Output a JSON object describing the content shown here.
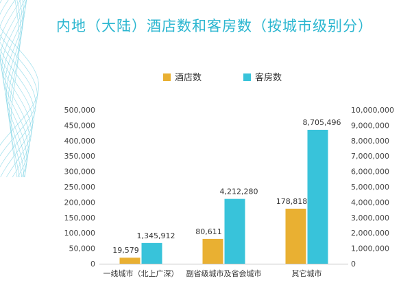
{
  "page": {
    "title": "内地（大陆）酒店数和客房数（按城市级别分）"
  },
  "colors": {
    "hotels": "#e9b032",
    "rooms": "#38c3da",
    "title": "#2bb6d0",
    "deco": "#7fd4e6"
  },
  "chart_data": {
    "type": "bar",
    "title": "内地（大陆）酒店数和客房数（按城市级别分）",
    "categories": [
      "一线城市（北上广深）",
      "副省级城市及省会城市",
      "其它城市"
    ],
    "series": [
      {
        "name": "酒店数",
        "axis": "left",
        "values": [
          19579,
          80611,
          178818
        ],
        "labels": [
          "19,579",
          "80,611",
          "178,818"
        ]
      },
      {
        "name": "客房数",
        "axis": "right",
        "values": [
          1345912,
          4212280,
          8705496
        ],
        "labels": [
          "1,345,912",
          "4,212,280",
          "8,705,496"
        ]
      }
    ],
    "y_left": {
      "lim": [
        0,
        500000
      ],
      "ticks": [
        "0",
        "50,000",
        "100,000",
        "150,000",
        "200,000",
        "250,000",
        "300,000",
        "350,000",
        "400,000",
        "450,000",
        "500,000"
      ]
    },
    "y_right": {
      "lim": [
        0,
        10000000
      ],
      "ticks": [
        "0",
        "1,000,000",
        "2,000,000",
        "3,000,000",
        "4,000,000",
        "5,000,000",
        "6,000,000",
        "7,000,000",
        "8,000,000",
        "9,000,000",
        "10,000,000"
      ]
    },
    "legend": "top",
    "grid": false
  }
}
